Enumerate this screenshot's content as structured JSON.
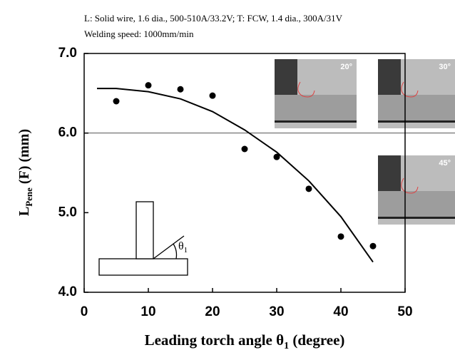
{
  "chart_data": {
    "type": "scatter",
    "header_lines": [
      "L: Solid wire, 1.6 dia., 500-510A/33.2V;   T: FCW, 1.4 dia., 300A/31V",
      "Welding speed: 1000mm/min"
    ],
    "ylabel": {
      "main": "L",
      "sub": "Pene",
      "rest": " (F) (mm)"
    },
    "xlabel": {
      "main": "Leading torch angle θ",
      "sub": "1",
      "rest": " (degree)"
    },
    "xlim": [
      0,
      50
    ],
    "ylim": [
      4.0,
      7.0
    ],
    "xticks": [
      0,
      10,
      20,
      30,
      40,
      50
    ],
    "yticks": [
      {
        "value": 4.0,
        "label": "4.0"
      },
      {
        "value": 5.0,
        "label": "5.0"
      },
      {
        "value": 6.0,
        "label": "6.0"
      },
      {
        "value": 7.0,
        "label": "7.0"
      }
    ],
    "reference_line": 6.0,
    "points": {
      "color": "#000000",
      "x": [
        5,
        10,
        15,
        20,
        25,
        30,
        35,
        40,
        45
      ],
      "values": [
        6.4,
        6.6,
        6.55,
        6.47,
        5.8,
        5.7,
        5.3,
        4.7,
        4.58
      ]
    },
    "curve": {
      "color": "#000000",
      "x": [
        2,
        5,
        10,
        15,
        20,
        25,
        30,
        35,
        40,
        45
      ],
      "values": [
        6.56,
        6.56,
        6.52,
        6.43,
        6.27,
        6.04,
        5.76,
        5.4,
        4.95,
        4.38
      ]
    },
    "diagram_label": {
      "main": "θ",
      "sub": "1"
    },
    "insets": [
      {
        "label": "20°"
      },
      {
        "label": "30°"
      },
      {
        "label": "45°"
      }
    ]
  }
}
